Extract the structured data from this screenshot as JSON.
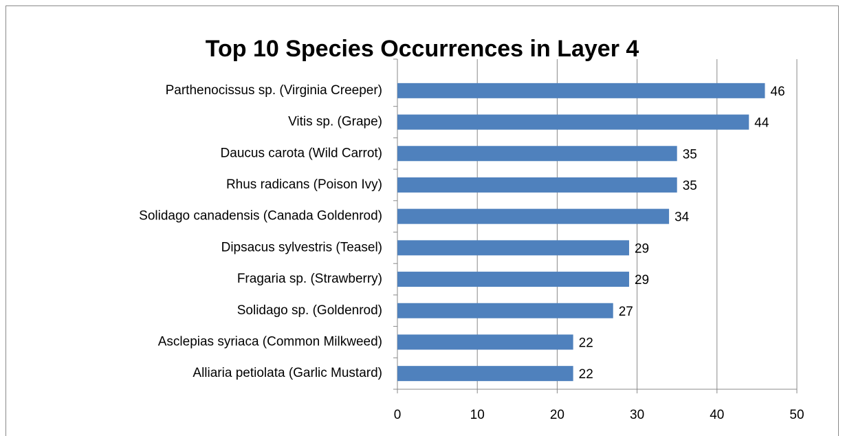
{
  "chart_data": {
    "type": "bar",
    "title": "Top 10 Species Occurrences in Layer 4",
    "categories": [
      "Parthenocissus sp. (Virginia Creeper)",
      "Vitis sp. (Grape)",
      "Daucus carota (Wild Carrot)",
      "Rhus radicans (Poison Ivy)",
      "Solidago canadensis (Canada Goldenrod)",
      "Dipsacus sylvestris (Teasel)",
      "Fragaria sp. (Strawberry)",
      "Solidago sp. (Goldenrod)",
      "Asclepias syriaca (Common Milkweed)",
      "Alliaria petiolata (Garlic Mustard)"
    ],
    "values": [
      46,
      44,
      35,
      35,
      34,
      29,
      29,
      27,
      22,
      22
    ],
    "color": "#4f81bd",
    "xlim": [
      0,
      50
    ],
    "xticks": [
      0,
      10,
      20,
      30,
      40,
      50
    ],
    "grid": true
  }
}
